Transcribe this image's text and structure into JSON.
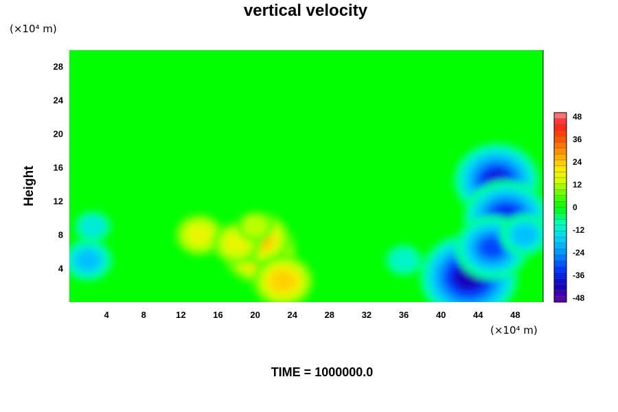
{
  "chart_data": {
    "type": "heatmap",
    "title": "vertical velocity",
    "xlabel": "",
    "ylabel": "Height",
    "x_unit": "(×10⁴ m)",
    "y_unit": "(×10⁴ m)",
    "x_ticks": [
      "4",
      "8",
      "12",
      "16",
      "20",
      "24",
      "28",
      "32",
      "36",
      "40",
      "44",
      "48"
    ],
    "y_ticks": [
      "4",
      "8",
      "12",
      "16",
      "20",
      "24",
      "28"
    ],
    "xlim": [
      0,
      51
    ],
    "ylim": [
      0,
      30
    ],
    "colorbar": {
      "ticks": [
        "48",
        "36",
        "24",
        "12",
        "0",
        "-12",
        "-24",
        "-36",
        "-48"
      ],
      "range": [
        -48,
        48
      ]
    },
    "features": [
      {
        "x": 20.5,
        "y": 6.0,
        "value": 30
      },
      {
        "x": 20.5,
        "y": 7.5,
        "value": 24
      },
      {
        "x": 23.0,
        "y": 2.5,
        "value": 22
      },
      {
        "x": 14.0,
        "y": 8.0,
        "value": 16
      },
      {
        "x": 18.0,
        "y": 7.0,
        "value": 16
      },
      {
        "x": 20.0,
        "y": 9.0,
        "value": 12
      },
      {
        "x": 2.0,
        "y": 5.0,
        "value": -20
      },
      {
        "x": 2.5,
        "y": 9.0,
        "value": -12
      },
      {
        "x": 43.0,
        "y": 3.0,
        "value": -40
      },
      {
        "x": 46.0,
        "y": 14.5,
        "value": -38
      },
      {
        "x": 47.0,
        "y": 10.0,
        "value": -34
      },
      {
        "x": 45.5,
        "y": 6.5,
        "value": -32
      },
      {
        "x": 49.0,
        "y": 8.0,
        "value": -20
      },
      {
        "x": 36.0,
        "y": 5.0,
        "value": -10
      }
    ]
  },
  "footer": {
    "time_label": "TIME = 1000000.0"
  }
}
